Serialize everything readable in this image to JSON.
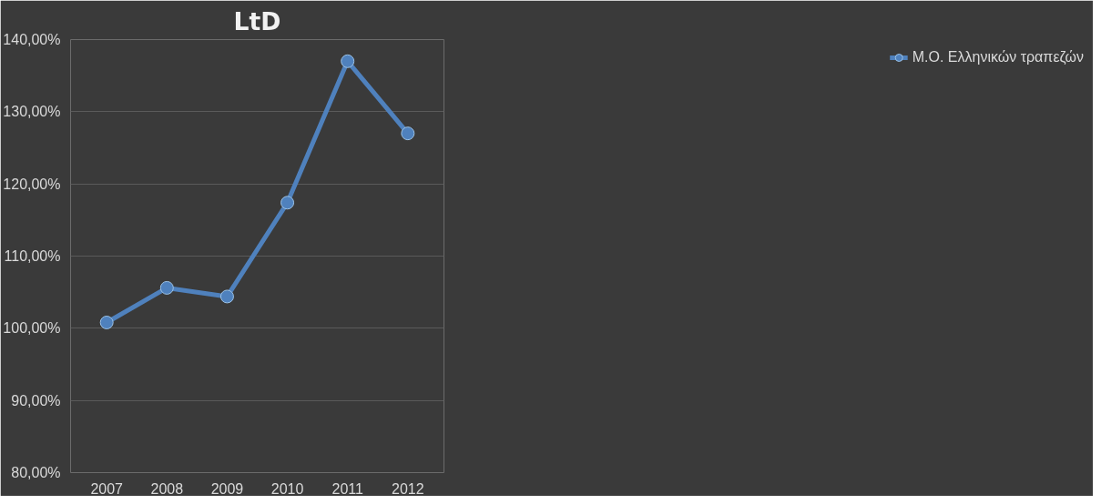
{
  "chart_data": {
    "type": "line",
    "title": "LtD",
    "categories": [
      "2007",
      "2008",
      "2009",
      "2010",
      "2011",
      "2012"
    ],
    "series": [
      {
        "name": "Μ.Ο. Ελληνικών τραπεζών",
        "color": "#4f81bd",
        "values": [
          100.8,
          105.6,
          104.4,
          117.4,
          137.0,
          127.0
        ]
      }
    ],
    "ylim": [
      80,
      140
    ],
    "yticks": [
      {
        "value": 80,
        "label": "80,00%"
      },
      {
        "value": 90,
        "label": "90,00%"
      },
      {
        "value": 100,
        "label": "100,00%"
      },
      {
        "value": 110,
        "label": "110,00%"
      },
      {
        "value": 120,
        "label": "120,00%"
      },
      {
        "value": 130,
        "label": "130,00%"
      },
      {
        "value": 140,
        "label": "140,00%"
      }
    ],
    "grid": "y",
    "legend": "right",
    "marker": "circle",
    "line_style": "solid"
  }
}
